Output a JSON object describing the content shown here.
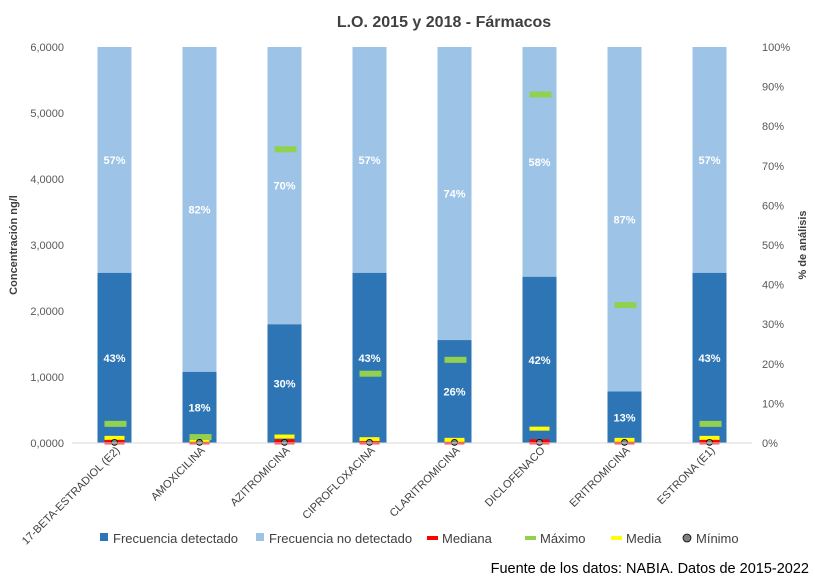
{
  "chart_data": {
    "type": "bar",
    "title": "L.O. 2015 y 2018 - Fármacos",
    "ylabel_left": "Concentración  ng/l",
    "ylabel_right": "% de análisis",
    "ylim_left": [
      0,
      6
    ],
    "ylim_right": [
      0,
      100
    ],
    "yticks_left": [
      "0,0000",
      "1,0000",
      "2,0000",
      "3,0000",
      "4,0000",
      "5,0000",
      "6,0000"
    ],
    "yticks_right": [
      "0%",
      "10%",
      "20%",
      "30%",
      "40%",
      "50%",
      "60%",
      "70%",
      "80%",
      "90%",
      "100%"
    ],
    "categories": [
      "17-BETA-ESTRADIOL (E2)",
      "AMOXICILINA",
      "AZITROMICINA",
      "CIPROFLOXACINA",
      "CLARITROMICINA",
      "DICLOFENACO",
      "ERITROMICINA",
      "ESTRONA (E1)"
    ],
    "series": [
      {
        "name": "Frecuencia detectado",
        "axis": "right",
        "values": [
          43,
          18,
          30,
          43,
          26,
          42,
          13,
          43
        ],
        "labels": [
          "43%",
          "18%",
          "30%",
          "43%",
          "26%",
          "42%",
          "13%",
          "43%"
        ],
        "color": "#2e75b6"
      },
      {
        "name": "Frecuencia no detectado",
        "axis": "right",
        "values": [
          57,
          82,
          70,
          57,
          74,
          58,
          87,
          57
        ],
        "labels": [
          "57%",
          "82%",
          "70%",
          "57%",
          "74%",
          "58%",
          "87%",
          "57%"
        ],
        "color": "#9dc3e6"
      },
      {
        "name": "Mediana",
        "axis": "left",
        "values": [
          0.01,
          0.01,
          0.01,
          0.01,
          0.01,
          0.01,
          0.01,
          0.01
        ],
        "color": "#ff0000"
      },
      {
        "name": "Máximo",
        "axis": "left",
        "values": [
          0.29,
          0.09,
          4.45,
          1.05,
          1.26,
          5.28,
          2.09,
          0.29
        ],
        "color": "#92d050"
      },
      {
        "name": "Media",
        "axis": "left",
        "values": [
          0.07,
          0.04,
          0.09,
          0.05,
          0.04,
          0.21,
          0.04,
          0.07
        ],
        "color": "#ffff00"
      },
      {
        "name": "Mínimo",
        "axis": "left",
        "values": [
          0.01,
          0.01,
          0.01,
          0.01,
          0.01,
          0.01,
          0.01,
          0.01
        ],
        "color": "#7f7f7f"
      }
    ],
    "legend": "bottom"
  },
  "source_note": "Fuente de los datos: NABIA. Datos de 2015-2022"
}
